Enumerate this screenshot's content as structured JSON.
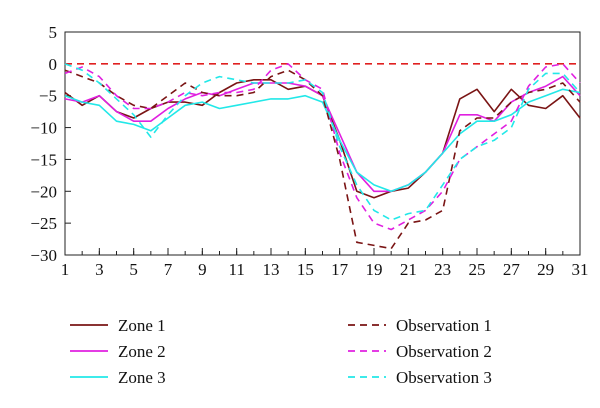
{
  "chart_data": {
    "type": "line",
    "title": "",
    "xlabel": "",
    "ylabel": "",
    "xlim": [
      1,
      31
    ],
    "ylim": [
      -30,
      5
    ],
    "x_ticks": [
      1,
      3,
      5,
      7,
      9,
      11,
      13,
      15,
      17,
      19,
      21,
      23,
      25,
      27,
      29,
      31
    ],
    "y_ticks": [
      5,
      0,
      -5,
      -10,
      -15,
      -20,
      -25,
      -30
    ],
    "grid": false,
    "legend_position": "bottom",
    "reference_line": {
      "y": 0,
      "color": "#e02020",
      "style": "dashed"
    },
    "x": [
      1,
      2,
      3,
      4,
      5,
      6,
      7,
      8,
      9,
      10,
      11,
      12,
      13,
      14,
      15,
      16,
      17,
      18,
      19,
      20,
      21,
      22,
      23,
      24,
      25,
      26,
      27,
      28,
      29,
      30,
      31
    ],
    "series": [
      {
        "name": "Zone 1",
        "color": "#7a1414",
        "style": "solid",
        "values": [
          -4.5,
          -6.5,
          -5,
          -7.5,
          -8.5,
          -7,
          -6,
          -6,
          -6.5,
          -4.5,
          -3,
          -2.5,
          -2.5,
          -4,
          -3.5,
          -5,
          -12,
          -20,
          -21,
          -20,
          -19.5,
          -17,
          -14,
          -5.5,
          -4,
          -7.5,
          -4,
          -6.5,
          -7,
          -5,
          -8.5
        ]
      },
      {
        "name": "Zone 2",
        "color": "#e020e0",
        "style": "solid",
        "values": [
          -5.5,
          -6,
          -5,
          -7.5,
          -9,
          -9,
          -7,
          -5.5,
          -4.5,
          -5,
          -4,
          -3,
          -3,
          -3,
          -3.5,
          -5,
          -11,
          -17,
          -20,
          -20,
          -19,
          -17,
          -14,
          -8,
          -8,
          -9,
          -6,
          -4.5,
          -3.5,
          -2,
          -5
        ]
      },
      {
        "name": "Zone 3",
        "color": "#22e8e8",
        "style": "solid",
        "values": [
          -5,
          -6,
          -6.5,
          -9,
          -9.5,
          -10.5,
          -8.5,
          -6.5,
          -6,
          -7,
          -6.5,
          -6,
          -5.5,
          -5.5,
          -5,
          -6,
          -12,
          -17,
          -19,
          -20,
          -19,
          -17,
          -14,
          -11,
          -9,
          -9,
          -8,
          -6,
          -5,
          -4,
          -4.5
        ]
      },
      {
        "name": "Observation 1",
        "color": "#7a1414",
        "style": "dashed",
        "values": [
          -1,
          -2,
          -3,
          -5,
          -6.5,
          -7,
          -5,
          -3,
          -4.5,
          -5,
          -5,
          -4.5,
          -2,
          -1,
          -2.5,
          -5,
          -15,
          -28,
          -28.5,
          -29,
          -25,
          -24.5,
          -23,
          -10.5,
          -8.5,
          -8.5,
          -6,
          -4.5,
          -4,
          -3,
          -6
        ]
      },
      {
        "name": "Observation 2",
        "color": "#e020e0",
        "style": "dashed",
        "values": [
          -1.5,
          -0.5,
          -2,
          -5,
          -7,
          -7,
          -6,
          -4.5,
          -5,
          -4.5,
          -4.5,
          -4,
          -1,
          0,
          -2.5,
          -4,
          -14,
          -21,
          -25,
          -26,
          -24.5,
          -23,
          -20,
          -15,
          -13,
          -11,
          -9,
          -3.5,
          -0.5,
          0,
          -3
        ]
      },
      {
        "name": "Observation 3",
        "color": "#22e8e8",
        "style": "dashed",
        "values": [
          0,
          -1,
          -3,
          -5.5,
          -8,
          -11.5,
          -8,
          -5,
          -3,
          -2,
          -2.5,
          -3,
          -3,
          -3,
          -2.5,
          -4.5,
          -13,
          -19,
          -23,
          -24.5,
          -23.5,
          -23,
          -19,
          -15,
          -13,
          -12,
          -10,
          -4,
          -1.5,
          -1.5,
          -4.5
        ]
      }
    ]
  }
}
